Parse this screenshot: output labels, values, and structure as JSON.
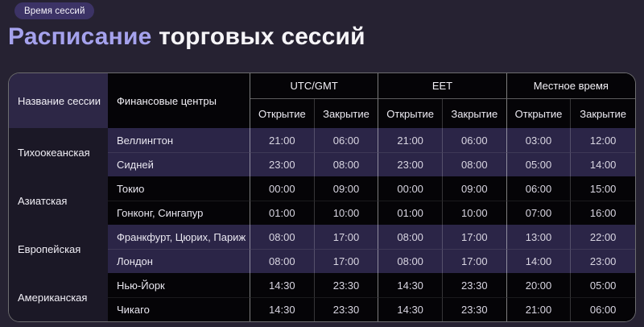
{
  "page": {
    "badge": "Время сессий",
    "title_accent": "Расписание",
    "title_rest": " торговых сессий"
  },
  "table": {
    "headers": {
      "session": "Название сессии",
      "centers": "Финансовые центры",
      "groups": [
        {
          "label": "UTC/GMT"
        },
        {
          "label": "EET"
        },
        {
          "label": "Местное время"
        }
      ],
      "open": "Открытие",
      "close": "Закрытие"
    },
    "sessions": [
      {
        "name": "Тихоокеанская",
        "rows": [
          {
            "centers": "Веллингтон",
            "times": [
              "21:00",
              "06:00",
              "21:00",
              "06:00",
              "03:00",
              "12:00"
            ]
          },
          {
            "centers": "Сидней",
            "times": [
              "23:00",
              "08:00",
              "23:00",
              "08:00",
              "05:00",
              "14:00"
            ]
          }
        ]
      },
      {
        "name": "Азиатская",
        "rows": [
          {
            "centers": "Токио",
            "times": [
              "00:00",
              "09:00",
              "00:00",
              "09:00",
              "06:00",
              "15:00"
            ]
          },
          {
            "centers": "Гонконг, Сингапур",
            "times": [
              "01:00",
              "10:00",
              "01:00",
              "10:00",
              "07:00",
              "16:00"
            ]
          }
        ]
      },
      {
        "name": "Европейская",
        "rows": [
          {
            "centers": "Франкфурт, Цюрих, Париж",
            "times": [
              "08:00",
              "17:00",
              "08:00",
              "17:00",
              "13:00",
              "22:00"
            ]
          },
          {
            "centers": "Лондон",
            "times": [
              "08:00",
              "17:00",
              "08:00",
              "17:00",
              "14:00",
              "23:00"
            ]
          }
        ]
      },
      {
        "name": "Американская",
        "rows": [
          {
            "centers": "Нью-Йорк",
            "times": [
              "14:30",
              "23:30",
              "14:30",
              "23:30",
              "20:00",
              "05:00"
            ]
          },
          {
            "centers": "Чикаго",
            "times": [
              "14:30",
              "23:30",
              "14:30",
              "23:30",
              "21:00",
              "06:00"
            ]
          }
        ]
      }
    ]
  },
  "colors": {
    "page_bg": "#262232",
    "badge_bg": "#3c3366",
    "title_accent": "#a5a2ed",
    "session_header_bg": "#2d2746",
    "session_col_bg": "#1b1826",
    "row_purple": "#2b2547",
    "row_black": "#050407"
  }
}
